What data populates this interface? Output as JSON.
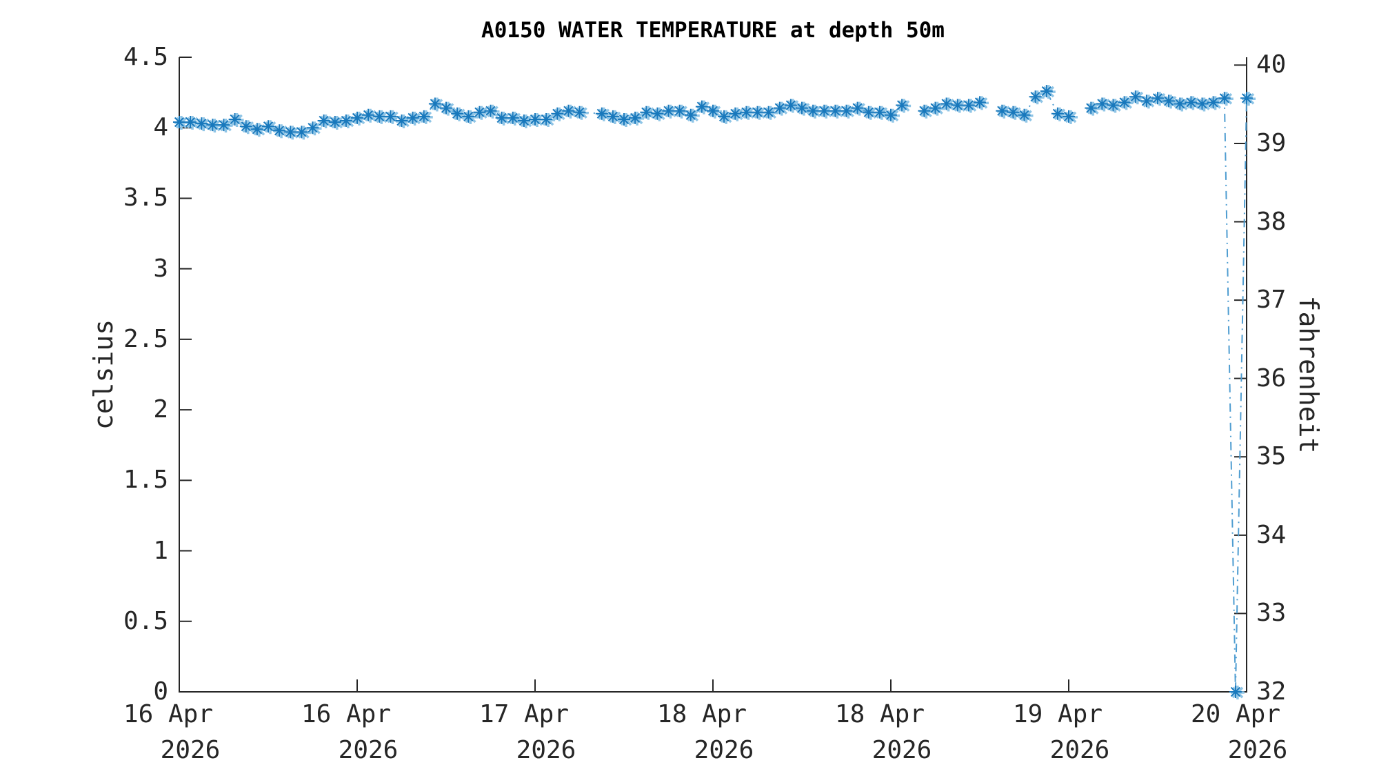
{
  "chart_data": {
    "type": "line",
    "title": "A0150 WATER TEMPERATURE at depth 50m",
    "ylabel_left": "celsius",
    "ylabel_right": "fahrenheit",
    "ylim_celsius": [
      0,
      4.5
    ],
    "ylim_fahrenheit": [
      32,
      40
    ],
    "x_range_hours": [
      0,
      96
    ],
    "grid": "off",
    "legend": "none",
    "yticks_celsius": [
      {
        "value": 0,
        "label": "0"
      },
      {
        "value": 0.5,
        "label": "0.5"
      },
      {
        "value": 1,
        "label": "1"
      },
      {
        "value": 1.5,
        "label": "1.5"
      },
      {
        "value": 2,
        "label": "2"
      },
      {
        "value": 2.5,
        "label": "2.5"
      },
      {
        "value": 3,
        "label": "3"
      },
      {
        "value": 3.5,
        "label": "3.5"
      },
      {
        "value": 4,
        "label": "4"
      },
      {
        "value": 4.5,
        "label": "4.5"
      }
    ],
    "yticks_fahrenheit": [
      {
        "value": 32,
        "label": "32"
      },
      {
        "value": 33,
        "label": "33"
      },
      {
        "value": 34,
        "label": "34"
      },
      {
        "value": 35,
        "label": "35"
      },
      {
        "value": 36,
        "label": "36"
      },
      {
        "value": 37,
        "label": "37"
      },
      {
        "value": 38,
        "label": "38"
      },
      {
        "value": 39,
        "label": "39"
      },
      {
        "value": 40,
        "label": "40"
      }
    ],
    "xticks": [
      {
        "hour": 0,
        "date": "16 Apr",
        "year": "2026"
      },
      {
        "hour": 16,
        "date": "16 Apr",
        "year": "2026"
      },
      {
        "hour": 32,
        "date": "17 Apr",
        "year": "2026"
      },
      {
        "hour": 48,
        "date": "18 Apr",
        "year": "2026"
      },
      {
        "hour": 64,
        "date": "18 Apr",
        "year": "2026"
      },
      {
        "hour": 80,
        "date": "19 Apr",
        "year": "2026"
      },
      {
        "hour": 96,
        "date": "20 Apr",
        "year": "2026"
      }
    ],
    "series": [
      {
        "name": "water temperature",
        "units": "celsius",
        "marker": "asterisk",
        "line_style": "dash-dot",
        "line_color": "#4f9dd1",
        "marker_color": "#1878bc",
        "marker_halo_color": "#8fc5e6",
        "points_hour_celsius": [
          [
            0,
            4.04
          ],
          [
            1,
            4.04
          ],
          [
            2,
            4.03
          ],
          [
            3,
            4.02
          ],
          [
            4,
            4.02
          ],
          [
            5,
            4.06
          ],
          [
            6,
            4.01
          ],
          [
            7,
            3.99
          ],
          [
            8,
            4.01
          ],
          [
            9,
            3.98
          ],
          [
            10,
            3.97
          ],
          [
            11,
            3.97
          ],
          [
            12,
            4.0
          ],
          [
            13,
            4.05
          ],
          [
            14,
            4.04
          ],
          [
            15,
            4.05
          ],
          [
            16,
            4.07
          ],
          [
            17,
            4.09
          ],
          [
            18,
            4.08
          ],
          [
            19,
            4.08
          ],
          [
            20,
            4.05
          ],
          [
            21,
            4.07
          ],
          [
            22,
            4.08
          ],
          [
            23,
            4.17
          ],
          [
            24,
            4.14
          ],
          [
            25,
            4.1
          ],
          [
            26,
            4.08
          ],
          [
            27,
            4.11
          ],
          [
            28,
            4.12
          ],
          [
            29,
            4.07
          ],
          [
            30,
            4.07
          ],
          [
            31,
            4.05
          ],
          [
            32,
            4.06
          ],
          [
            33,
            4.06
          ],
          [
            34,
            4.1
          ],
          [
            35,
            4.12
          ],
          [
            36,
            4.11
          ],
          [
            38,
            4.1
          ],
          [
            39,
            4.08
          ],
          [
            40,
            4.06
          ],
          [
            41,
            4.07
          ],
          [
            42,
            4.11
          ],
          [
            43,
            4.1
          ],
          [
            44,
            4.12
          ],
          [
            45,
            4.12
          ],
          [
            46,
            4.09
          ],
          [
            47,
            4.15
          ],
          [
            48,
            4.12
          ],
          [
            49,
            4.08
          ],
          [
            50,
            4.1
          ],
          [
            51,
            4.11
          ],
          [
            52,
            4.11
          ],
          [
            53,
            4.11
          ],
          [
            54,
            4.14
          ],
          [
            55,
            4.16
          ],
          [
            56,
            4.14
          ],
          [
            57,
            4.12
          ],
          [
            58,
            4.12
          ],
          [
            59,
            4.12
          ],
          [
            60,
            4.12
          ],
          [
            61,
            4.14
          ],
          [
            62,
            4.11
          ],
          [
            63,
            4.11
          ],
          [
            64,
            4.09
          ],
          [
            65,
            4.16
          ],
          [
            66,
            null
          ],
          [
            67,
            4.12
          ],
          [
            68,
            4.14
          ],
          [
            69,
            4.17
          ],
          [
            70,
            4.16
          ],
          [
            71,
            4.16
          ],
          [
            72,
            4.18
          ],
          [
            73,
            null
          ],
          [
            74,
            4.12
          ],
          [
            75,
            4.11
          ],
          [
            76,
            4.09
          ],
          [
            77,
            4.22
          ],
          [
            78,
            4.26
          ],
          [
            79,
            4.1
          ],
          [
            80,
            4.08
          ],
          [
            81,
            null
          ],
          [
            82,
            4.14
          ],
          [
            83,
            4.17
          ],
          [
            84,
            4.16
          ],
          [
            85,
            4.18
          ],
          [
            86,
            4.22
          ],
          [
            87,
            4.19
          ],
          [
            88,
            4.21
          ],
          [
            89,
            4.19
          ],
          [
            90,
            4.17
          ],
          [
            91,
            4.18
          ],
          [
            92,
            4.17
          ],
          [
            93,
            4.18
          ],
          [
            94,
            4.21
          ],
          [
            95,
            0.0
          ],
          [
            96,
            4.21
          ]
        ]
      }
    ],
    "axis_color": "#262626",
    "text_color": "#262626"
  }
}
